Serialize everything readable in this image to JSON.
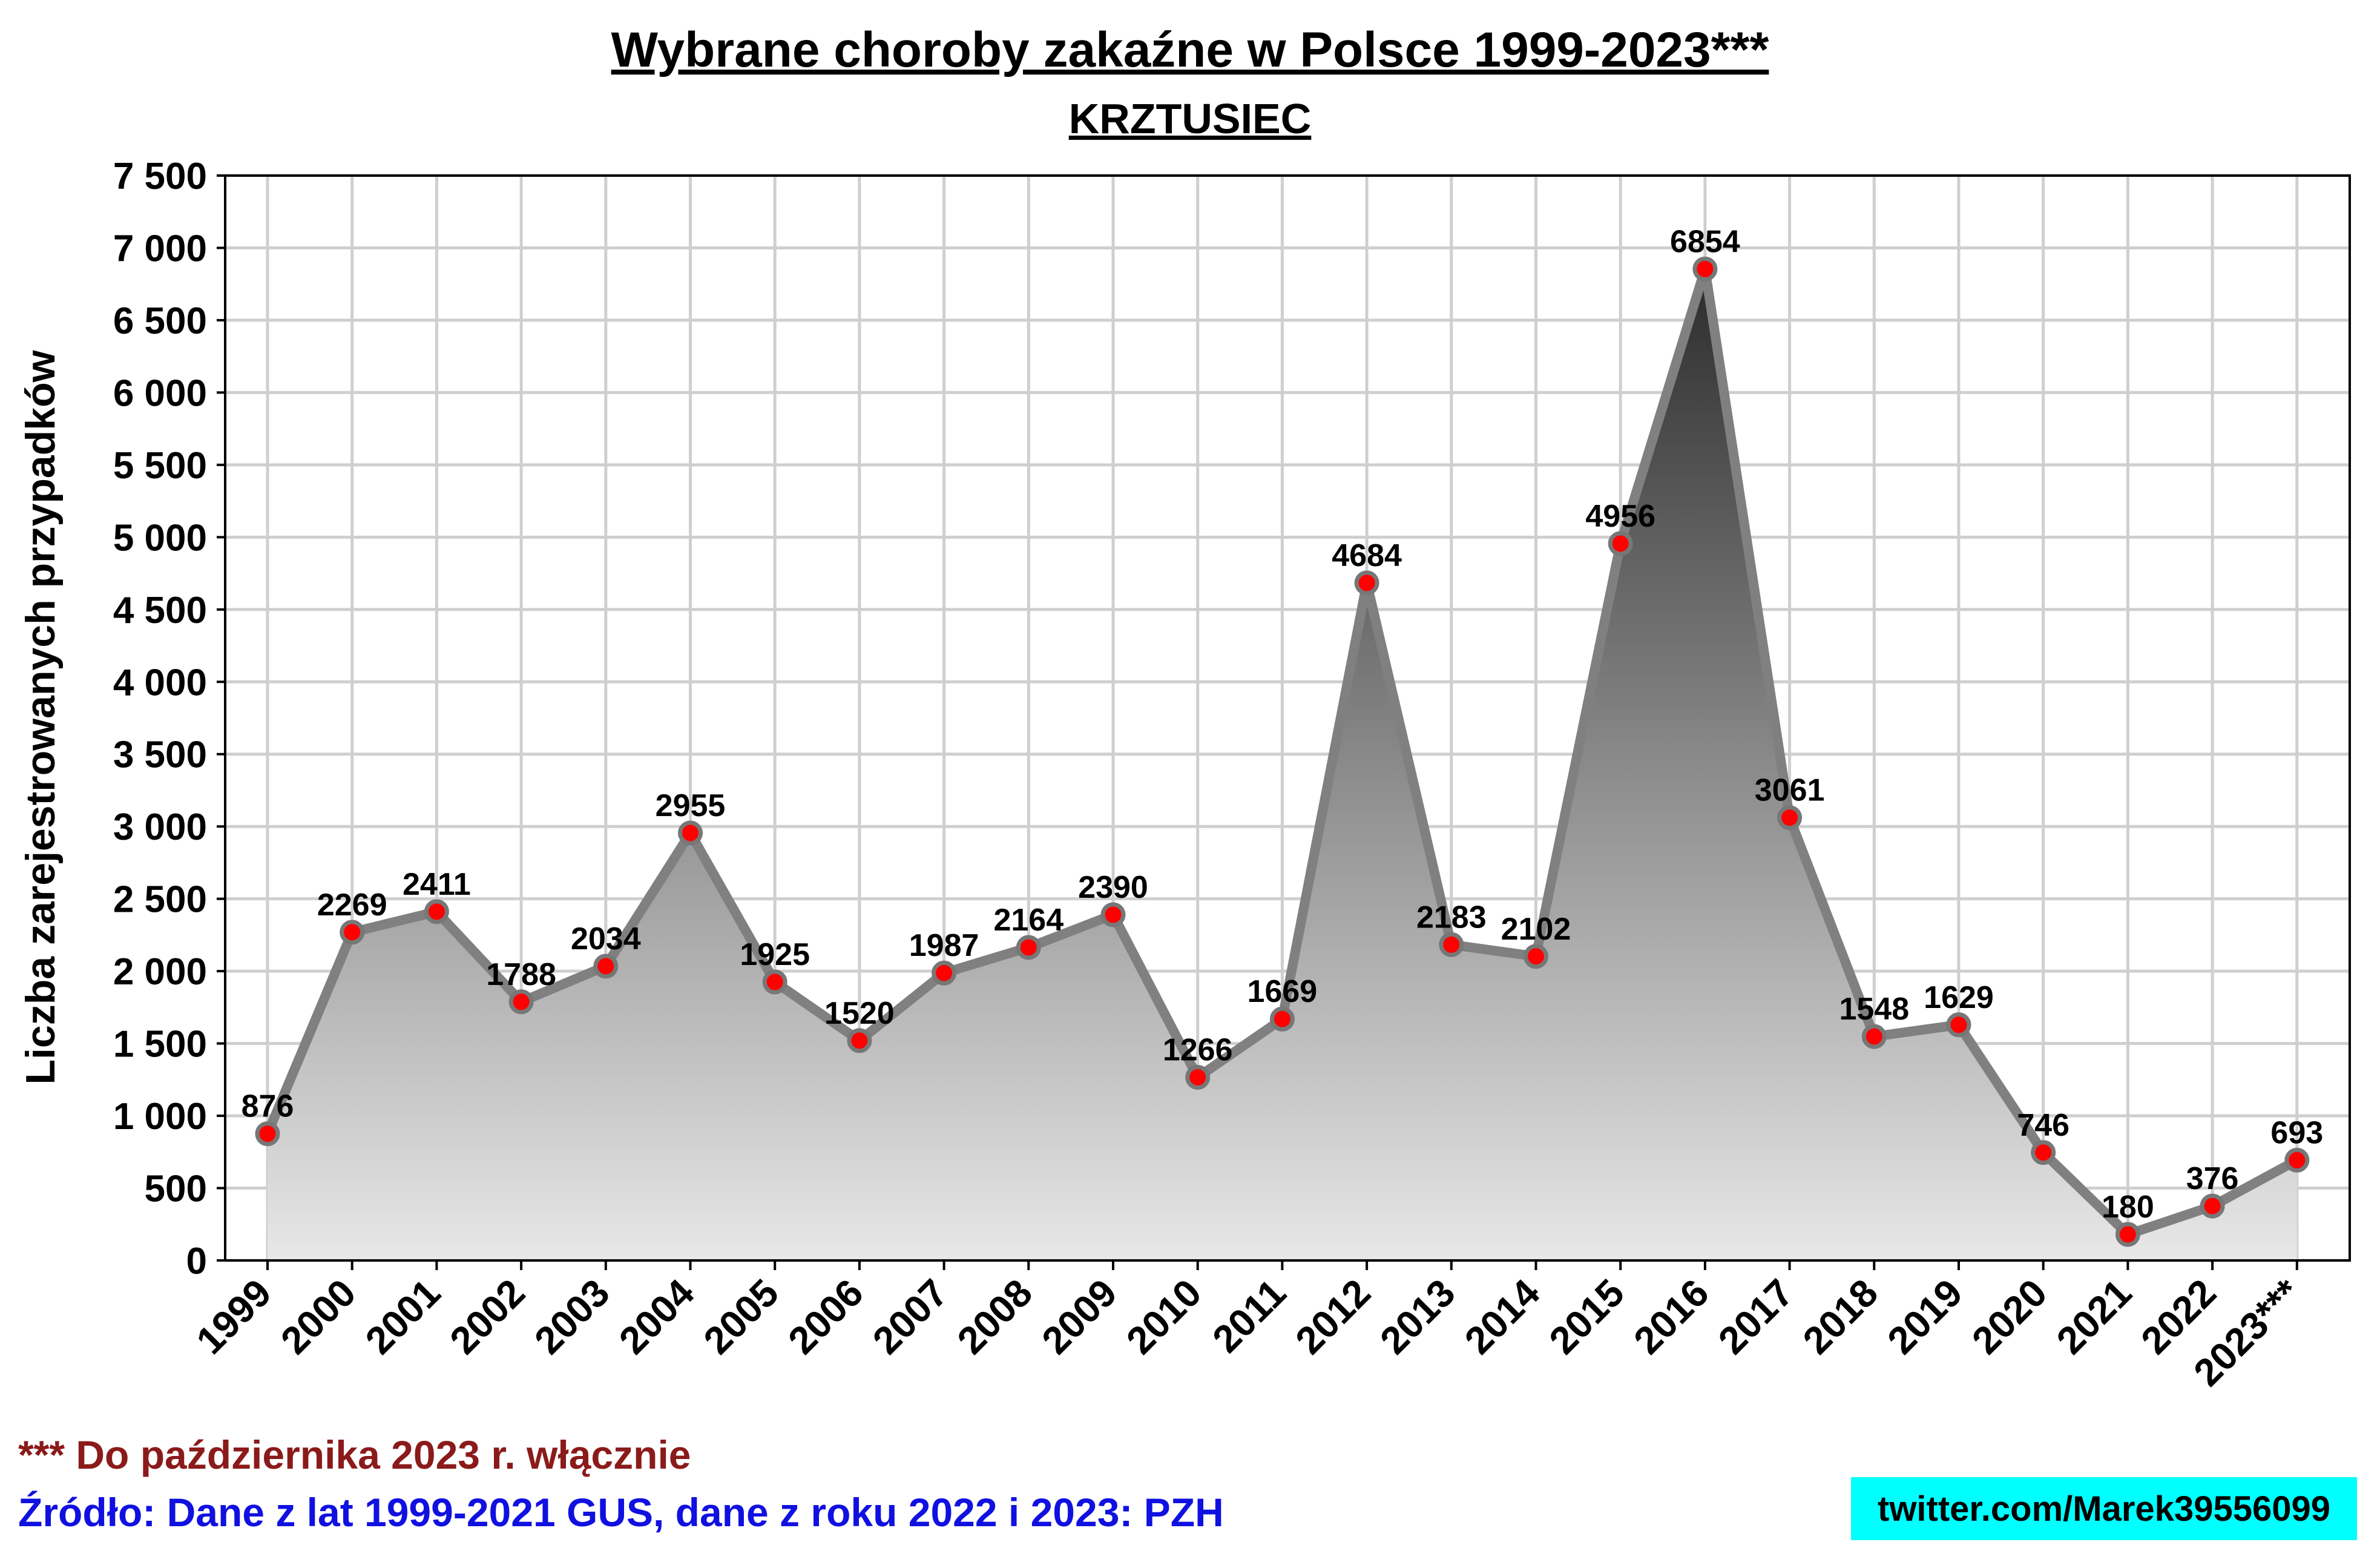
{
  "chart_data": {
    "type": "area",
    "title": "Wybrane choroby zakaźne w Polsce 1999-2023***",
    "subtitle": "KRZTUSIEC",
    "xlabel": "",
    "ylabel": "Liczba zarejestrowanych przypadków",
    "ylim": [
      0,
      7500
    ],
    "yticks": [
      0,
      500,
      1000,
      1500,
      2000,
      2500,
      3000,
      3500,
      4000,
      4500,
      5000,
      5500,
      6000,
      6500,
      7000,
      7500
    ],
    "ytick_labels": [
      "0",
      "500",
      "1 000",
      "1 500",
      "2 000",
      "2 500",
      "3 000",
      "3 500",
      "4 000",
      "4 500",
      "5 000",
      "5 500",
      "6 000",
      "6 500",
      "7 000",
      "7 500"
    ],
    "categories": [
      "1999",
      "2000",
      "2001",
      "2002",
      "2003",
      "2004",
      "2005",
      "2006",
      "2007",
      "2008",
      "2009",
      "2010",
      "2011",
      "2012",
      "2013",
      "2014",
      "2015",
      "2016",
      "2017",
      "2018",
      "2019",
      "2020",
      "2021",
      "2022",
      "2023***"
    ],
    "values": [
      876,
      2269,
      2411,
      1788,
      2034,
      2955,
      1925,
      1520,
      1987,
      2164,
      2390,
      1266,
      1669,
      4684,
      2183,
      2102,
      4956,
      6854,
      3061,
      1548,
      1629,
      746,
      180,
      376,
      693
    ],
    "grid": true,
    "legend": "none",
    "colors": {
      "line": "#808080",
      "marker": "#ff0000",
      "marker_edge": "#777777",
      "fill_top": "#2a2a2a",
      "fill_bottom": "#e8e8e8"
    }
  },
  "footnote": "*** Do października 2023 r. włącznie",
  "source": "Źródło: Dane z lat 1999-2021 GUS, dane z roku 2022 i 2023: PZH",
  "handle": "twitter.com/Marek39556099",
  "colors": {
    "footnote": "#8b1a1a",
    "source": "#1010e0",
    "handle_bg": "#00ffff"
  }
}
